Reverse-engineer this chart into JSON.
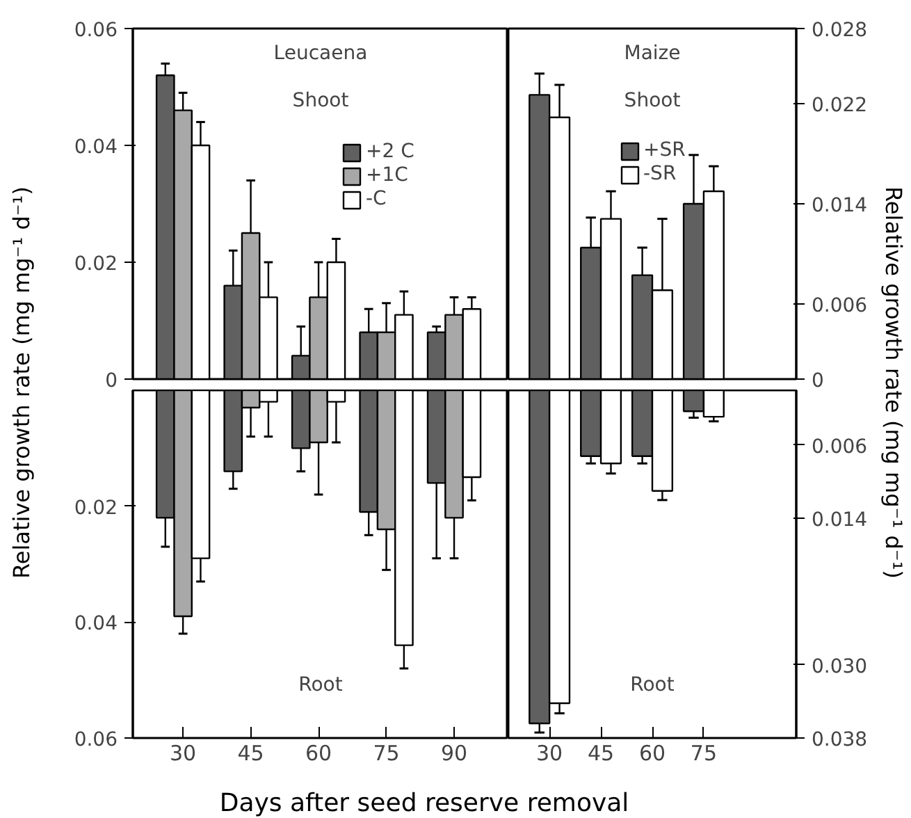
{
  "chart_data": [
    {
      "type": "bar",
      "title": "Leucaena",
      "annotations": [
        "Shoot"
      ],
      "ylabel": "Relative growth rate (mg mg⁻¹ d⁻¹)",
      "categories": [
        "30",
        "45",
        "60",
        "75",
        "90"
      ],
      "ylim": [
        0,
        0.06
      ],
      "yticks": [
        0,
        0.02,
        0.04,
        0.06
      ],
      "tick_labels": "y",
      "legend": "top right",
      "series": [
        {
          "name": "+2 C",
          "color": "#606060",
          "values": [
            0.052,
            0.016,
            0.004,
            0.008,
            0.008
          ],
          "errors": [
            [
              0.052,
              0.054
            ],
            [
              0.016,
              0.022
            ],
            [
              0.004,
              0.009
            ],
            [
              0.008,
              0.012
            ],
            [
              0.008,
              0.009
            ]
          ]
        },
        {
          "name": "+1C",
          "color": "#a8a8a8",
          "values": [
            0.046,
            0.025,
            0.014,
            0.008,
            0.011
          ],
          "errors": [
            [
              0.046,
              0.049
            ],
            [
              0.025,
              0.034
            ],
            [
              0.014,
              0.02
            ],
            [
              0.008,
              0.013
            ],
            [
              0.011,
              0.014
            ]
          ]
        },
        {
          "name": "-C",
          "color": "#ffffff",
          "values": [
            0.04,
            0.014,
            0.02,
            0.011,
            0.012
          ],
          "errors": [
            [
              0.04,
              0.044
            ],
            [
              0.014,
              0.02
            ],
            [
              0.02,
              0.024
            ],
            [
              0.011,
              0.015
            ],
            [
              0.012,
              0.014
            ]
          ]
        }
      ]
    },
    {
      "type": "bar",
      "title": "Maize",
      "annotations": [
        "Shoot"
      ],
      "ylabel": "Relative growth rate (mg mg⁻¹ d⁻¹)",
      "categories": [
        "30",
        "45",
        "60",
        "75"
      ],
      "ylim": [
        0,
        0.028
      ],
      "yticks": [
        0,
        0.006,
        0.014,
        0.022,
        0.028
      ],
      "tick_labels": "y",
      "series": [
        {
          "name": "+SR",
          "color": "#606060",
          "values": [
            0.0227,
            0.0105,
            0.0083,
            0.014
          ],
          "errors": [
            [
              0.0227,
              0.0244
            ],
            [
              0.0105,
              0.0129
            ],
            [
              0.0083,
              0.0105
            ],
            [
              0.014,
              0.0179
            ]
          ]
        },
        {
          "name": "-SR",
          "color": "#ffffff",
          "values": [
            0.0209,
            0.0128,
            0.0071,
            0.015
          ],
          "errors": [
            [
              0.0209,
              0.0235
            ],
            [
              0.0128,
              0.015
            ],
            [
              0.0071,
              0.0128
            ],
            [
              0.015,
              0.017
            ]
          ]
        }
      ],
      "legend": "top"
    },
    {
      "type": "bar",
      "annotations": [
        "Root"
      ],
      "xlabel": "Days after seed reserve removal",
      "categories": [
        "30",
        "45",
        "60",
        "75",
        "90"
      ],
      "ylim": [
        0.06,
        0
      ],
      "yticks": [
        0.02,
        0.04,
        0.06
      ],
      "series": [
        {
          "color": "#606060",
          "values": [
            0.022,
            0.014,
            0.01,
            0.021,
            0.016
          ],
          "errors": [
            [
              0.022,
              0.027
            ],
            [
              0.014,
              0.017
            ],
            [
              0.01,
              0.014
            ],
            [
              0.021,
              0.025
            ],
            [
              0.016,
              0.029
            ]
          ]
        },
        {
          "color": "#a8a8a8",
          "values": [
            0.039,
            0.003,
            0.009,
            0.024,
            0.022
          ],
          "errors": [
            [
              0.039,
              0.042
            ],
            [
              0.003,
              0.008
            ],
            [
              0.009,
              0.018
            ],
            [
              0.024,
              0.031
            ],
            [
              0.022,
              0.029
            ]
          ]
        },
        {
          "color": "#ffffff",
          "values": [
            0.029,
            0.002,
            0.002,
            0.044,
            0.015
          ],
          "errors": [
            [
              0.029,
              0.033
            ],
            [
              0.002,
              0.008
            ],
            [
              0.002,
              0.009
            ],
            [
              0.044,
              0.048
            ],
            [
              0.015,
              0.019
            ]
          ]
        }
      ]
    },
    {
      "type": "bar",
      "annotations": [
        "Root"
      ],
      "categories": [
        "30",
        "45",
        "60",
        "75"
      ],
      "ylim": [
        0.038,
        0
      ],
      "yticks": [
        0.006,
        0.014,
        {
          "value": 0.03,
          "label": "0.030"
        },
        0.038
      ],
      "series": [
        {
          "color": "#606060",
          "values": [
            0.0364,
            0.0072,
            0.0072,
            0.0023
          ],
          "errors": [
            [
              0.0364,
              0.0374
            ],
            [
              0.0072,
              0.008
            ],
            [
              0.0072,
              0.008
            ],
            [
              0.0023,
              0.003
            ]
          ]
        },
        {
          "color": "#ffffff",
          "values": [
            0.0342,
            0.008,
            0.011,
            0.0029
          ],
          "errors": [
            [
              0.0342,
              0.0353
            ],
            [
              0.008,
              0.0091
            ],
            [
              0.011,
              0.012
            ],
            [
              0.0029,
              0.0034
            ]
          ]
        }
      ]
    }
  ]
}
